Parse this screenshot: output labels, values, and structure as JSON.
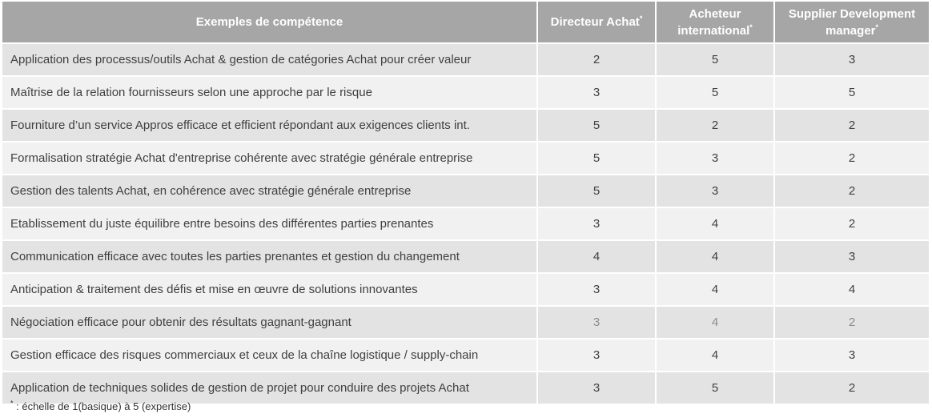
{
  "table": {
    "headers": {
      "competence": "Exemples de compétence",
      "col1_line1": "Directeur Achat",
      "col1_sup": "*",
      "col2_line1": "Acheteur",
      "col2_line2": "international",
      "col2_sup": "*",
      "col3_line1": "Supplier Development",
      "col3_line2": "manager",
      "col3_sup": "*"
    },
    "rows": [
      {
        "label": "Application des processus/outils Achat & gestion de catégories Achat pour créer valeur",
        "v1": "2",
        "v2": "5",
        "v3": "3"
      },
      {
        "label": "Maîtrise de la relation fournisseurs selon une approche par le risque",
        "v1": "3",
        "v2": "5",
        "v3": "5"
      },
      {
        "label": "Fourniture d’un service Appros efficace et efficient répondant aux exigences clients int.",
        "v1": "5",
        "v2": "2",
        "v3": "2"
      },
      {
        "label": "Formalisation stratégie Achat d'entreprise cohérente avec stratégie générale entreprise",
        "v1": "5",
        "v2": "3",
        "v3": "2"
      },
      {
        "label": "Gestion des talents Achat, en cohérence avec stratégie générale entreprise",
        "v1": "5",
        "v2": "3",
        "v3": "2"
      },
      {
        "label": "Etablissement du juste équilibre entre besoins des différentes parties prenantes",
        "v1": "3",
        "v2": "4",
        "v3": "2"
      },
      {
        "label": "Communication efficace avec toutes les parties prenantes et gestion du changement",
        "v1": "4",
        "v2": "4",
        "v3": "3"
      },
      {
        "label": "Anticipation & traitement des défis et mise en œuvre de solutions innovantes",
        "v1": "3",
        "v2": "4",
        "v3": "4"
      },
      {
        "label": "Négociation efficace pour obtenir des résultats gagnant-gagnant",
        "v1": "3",
        "v2": "4",
        "v3": "2"
      },
      {
        "label": "Gestion efficace des risques commerciaux et ceux de la chaîne logistique / supply-chain",
        "v1": "3",
        "v2": "4",
        "v3": "3"
      },
      {
        "label": "Application de techniques solides de gestion de projet pour conduire des projets Achat",
        "v1": "3",
        "v2": "5",
        "v3": "2"
      }
    ]
  },
  "footnote": {
    "marker": "*",
    "text": " : échelle de 1(basique) à 5 (expertise)"
  },
  "colors": {
    "header_bg": "#a6a6a6",
    "row_dark": "#e3e3e3",
    "row_light": "#f1f1f1",
    "muted_value": "#8c8c8c"
  }
}
